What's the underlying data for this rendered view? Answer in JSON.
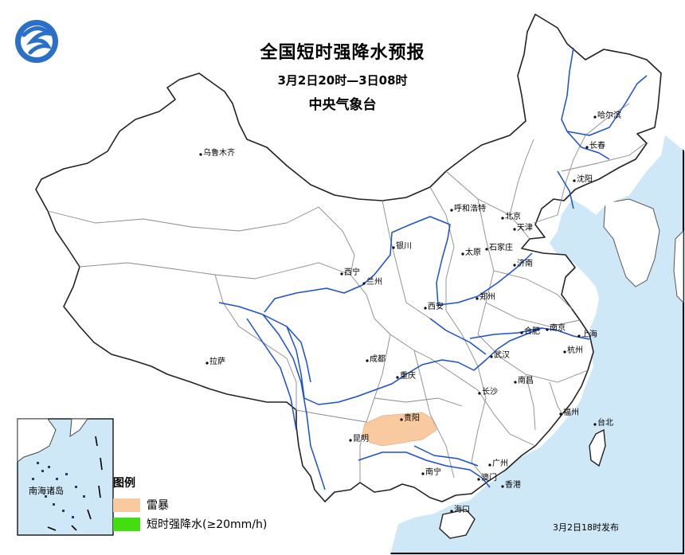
{
  "map": {
    "title": "全国短时强降水预报",
    "subtitle": "3月2日20时—3日08时",
    "agency": "中央气象台",
    "issue_time": "3月2日18时发布",
    "inset_label": "南海诸岛",
    "colors": {
      "sea": "#cfe8f7",
      "land": "#ffffff",
      "river": "#1a4fd6",
      "thunderstorm": "#f9c99f",
      "short_heavy_rain": "#44dd11"
    },
    "legend": {
      "title": "图例",
      "items": [
        {
          "label": "雷暴",
          "color": "#f9c99f"
        },
        {
          "label": "短时强降水(≥20mm/h)",
          "color": "#44dd11"
        }
      ]
    },
    "cities": [
      {
        "name": "乌鲁木齐"
      },
      {
        "name": "哈尔滨"
      },
      {
        "name": "长春"
      },
      {
        "name": "沈阳"
      },
      {
        "name": "呼和浩特"
      },
      {
        "name": "北京"
      },
      {
        "name": "天津"
      },
      {
        "name": "银川"
      },
      {
        "name": "石家庄"
      },
      {
        "name": "太原"
      },
      {
        "name": "济南"
      },
      {
        "name": "西宁"
      },
      {
        "name": "兰州"
      },
      {
        "name": "郑州"
      },
      {
        "name": "西安"
      },
      {
        "name": "合肥"
      },
      {
        "name": "南京"
      },
      {
        "name": "上海"
      },
      {
        "name": "杭州"
      },
      {
        "name": "拉萨"
      },
      {
        "name": "成都"
      },
      {
        "name": "武汉"
      },
      {
        "name": "重庆"
      },
      {
        "name": "南昌"
      },
      {
        "name": "长沙"
      },
      {
        "name": "贵阳"
      },
      {
        "name": "福州"
      },
      {
        "name": "台北"
      },
      {
        "name": "昆明"
      },
      {
        "name": "广州"
      },
      {
        "name": "南宁"
      },
      {
        "name": "澳门"
      },
      {
        "name": "香港"
      },
      {
        "name": "海口"
      }
    ]
  }
}
